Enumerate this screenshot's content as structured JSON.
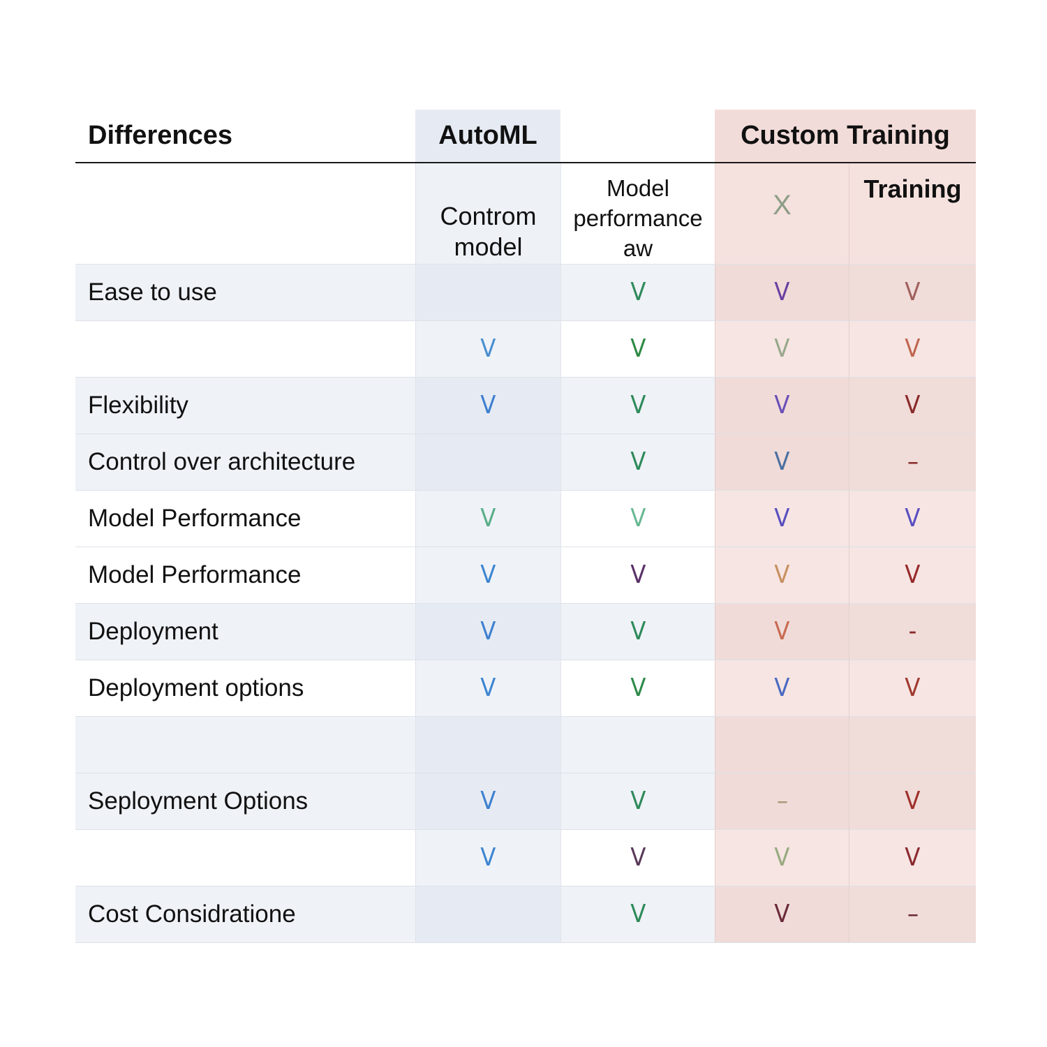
{
  "header": {
    "differences": "Differences",
    "automl": "AutoML",
    "col2": "",
    "custom_training": "Custom Training"
  },
  "subheader": {
    "label": "",
    "automl": "Controm model",
    "col2": "Model performance aw",
    "custom_a": "X",
    "custom_b": "Training"
  },
  "colors": {
    "automl_bg": "#e6ebf3",
    "custom_bg": "#f2dcd9",
    "rule": "#1a1a1a",
    "x_mark": "#8d9e86"
  },
  "rows": [
    {
      "label": "Ease to use",
      "cells": [
        {
          "mark": "",
          "color": ""
        },
        {
          "mark": "V",
          "color": "#2e8a5a"
        },
        {
          "mark": "V",
          "color": "#6a3fa0"
        },
        {
          "mark": "V",
          "color": "#a0605e"
        }
      ]
    },
    {
      "label": "",
      "cells": [
        {
          "mark": "V",
          "color": "#4a8fcf"
        },
        {
          "mark": "V",
          "color": "#2e8a44"
        },
        {
          "mark": "V",
          "color": "#98a88a"
        },
        {
          "mark": "V",
          "color": "#c0664e"
        }
      ]
    },
    {
      "label": "Flexibility",
      "cells": [
        {
          "mark": "V",
          "color": "#3e7fd0"
        },
        {
          "mark": "V",
          "color": "#2e8a5a"
        },
        {
          "mark": "V",
          "color": "#6a4fb8"
        },
        {
          "mark": "V",
          "color": "#8a2a2a"
        }
      ]
    },
    {
      "label": "Control over architecture",
      "cells": [
        {
          "mark": "",
          "color": ""
        },
        {
          "mark": "V",
          "color": "#2e8a5a"
        },
        {
          "mark": "V",
          "color": "#4a6fa0"
        },
        {
          "mark": "–",
          "color": "#8a2a2a"
        }
      ]
    },
    {
      "label": "Model Performance",
      "cells": [
        {
          "mark": "V",
          "color": "#5aae88"
        },
        {
          "mark": "V",
          "color": "#6ab894"
        },
        {
          "mark": "V",
          "color": "#5a4fc0"
        },
        {
          "mark": "V",
          "color": "#5a4fc0"
        }
      ]
    },
    {
      "label": "Model Performance",
      "cells": [
        {
          "mark": "V",
          "color": "#3e85d0"
        },
        {
          "mark": "V",
          "color": "#5a3068"
        },
        {
          "mark": "V",
          "color": "#c89060"
        },
        {
          "mark": "V",
          "color": "#962a2a"
        }
      ]
    },
    {
      "label": "Deployment",
      "cells": [
        {
          "mark": "V",
          "color": "#3e80d0"
        },
        {
          "mark": "V",
          "color": "#2e8a5a"
        },
        {
          "mark": "V",
          "color": "#c86a50"
        },
        {
          "mark": "-",
          "color": "#8a2a2a"
        }
      ]
    },
    {
      "label": "Deployment options",
      "cells": [
        {
          "mark": "V",
          "color": "#3e85d0"
        },
        {
          "mark": "V",
          "color": "#2e8a4a"
        },
        {
          "mark": "V",
          "color": "#4a6ac0"
        },
        {
          "mark": "V",
          "color": "#a03a30"
        }
      ]
    },
    {
      "label": "",
      "cells": [
        {
          "mark": "",
          "color": ""
        },
        {
          "mark": "",
          "color": ""
        },
        {
          "mark": "",
          "color": ""
        },
        {
          "mark": "",
          "color": ""
        }
      ]
    },
    {
      "label": "Seployment Options",
      "cells": [
        {
          "mark": "V",
          "color": "#3e80d0"
        },
        {
          "mark": "V",
          "color": "#2e8a5a"
        },
        {
          "mark": "–",
          "color": "#a89a78"
        },
        {
          "mark": "V",
          "color": "#a0302a"
        }
      ]
    },
    {
      "label": "",
      "cells": [
        {
          "mark": "V",
          "color": "#3e85d0"
        },
        {
          "mark": "V",
          "color": "#5a3a5a"
        },
        {
          "mark": "V",
          "color": "#98aa80"
        },
        {
          "mark": "V",
          "color": "#8a2a30"
        }
      ]
    },
    {
      "label": "Cost Considratione",
      "cells": [
        {
          "mark": "",
          "color": ""
        },
        {
          "mark": "V",
          "color": "#2e8a5a"
        },
        {
          "mark": "V",
          "color": "#6a2a3a"
        },
        {
          "mark": "–",
          "color": "#6a2a30"
        }
      ]
    }
  ]
}
